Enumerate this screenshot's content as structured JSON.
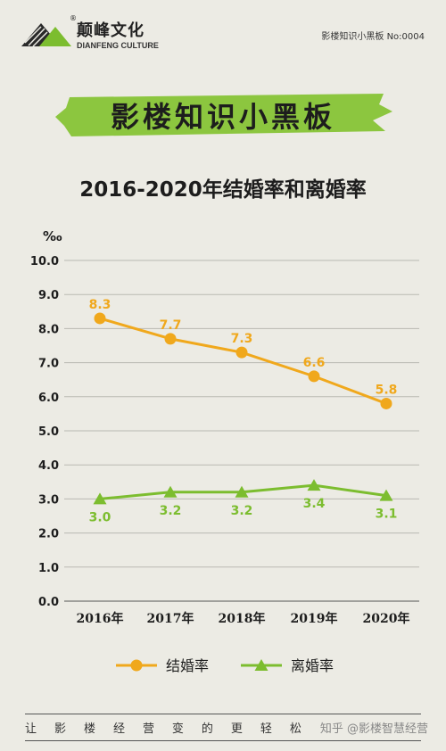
{
  "brand": {
    "name_cn": "颠峰文化",
    "name_en": "DIANFENG CULTURE",
    "registered_mark": "®",
    "issue": "影楼知识小黑板 No:0004"
  },
  "banner": {
    "title": "影楼知识小黑板"
  },
  "footer": {
    "slogan_chars": [
      "让",
      "影",
      "楼",
      "经",
      "营",
      "变",
      "的",
      "更",
      "轻",
      "松"
    ],
    "credit": "知乎 @影楼智慧经营"
  },
  "colors": {
    "marriage": "#f0a81c",
    "divorce": "#7cbd2f",
    "banner_green": "#8cc63f",
    "grid": "#b9b9b2"
  },
  "chart_data": {
    "type": "line",
    "title": "2016-2020年结婚率和离婚率",
    "ylabel": "‰",
    "categories": [
      "2016年",
      "2017年",
      "2018年",
      "2019年",
      "2020年"
    ],
    "ylim": [
      0,
      10
    ],
    "yticks": [
      "0.0",
      "1.0",
      "2.0",
      "3.0",
      "4.0",
      "5.0",
      "6.0",
      "7.0",
      "8.0",
      "9.0",
      "10.0"
    ],
    "grid": true,
    "legend_position": "bottom-center",
    "series": [
      {
        "name": "结婚率",
        "values": [
          8.3,
          7.7,
          7.3,
          6.6,
          5.8
        ],
        "labels": [
          "8.3",
          "7.7",
          "7.3",
          "6.6",
          "5.8"
        ],
        "marker": "circle",
        "color": "#f0a81c"
      },
      {
        "name": "离婚率",
        "values": [
          3.0,
          3.2,
          3.2,
          3.4,
          3.1
        ],
        "labels": [
          "3.0",
          "3.2",
          "3.2",
          "3.4",
          "3.1"
        ],
        "marker": "triangle",
        "color": "#7cbd2f"
      }
    ]
  }
}
